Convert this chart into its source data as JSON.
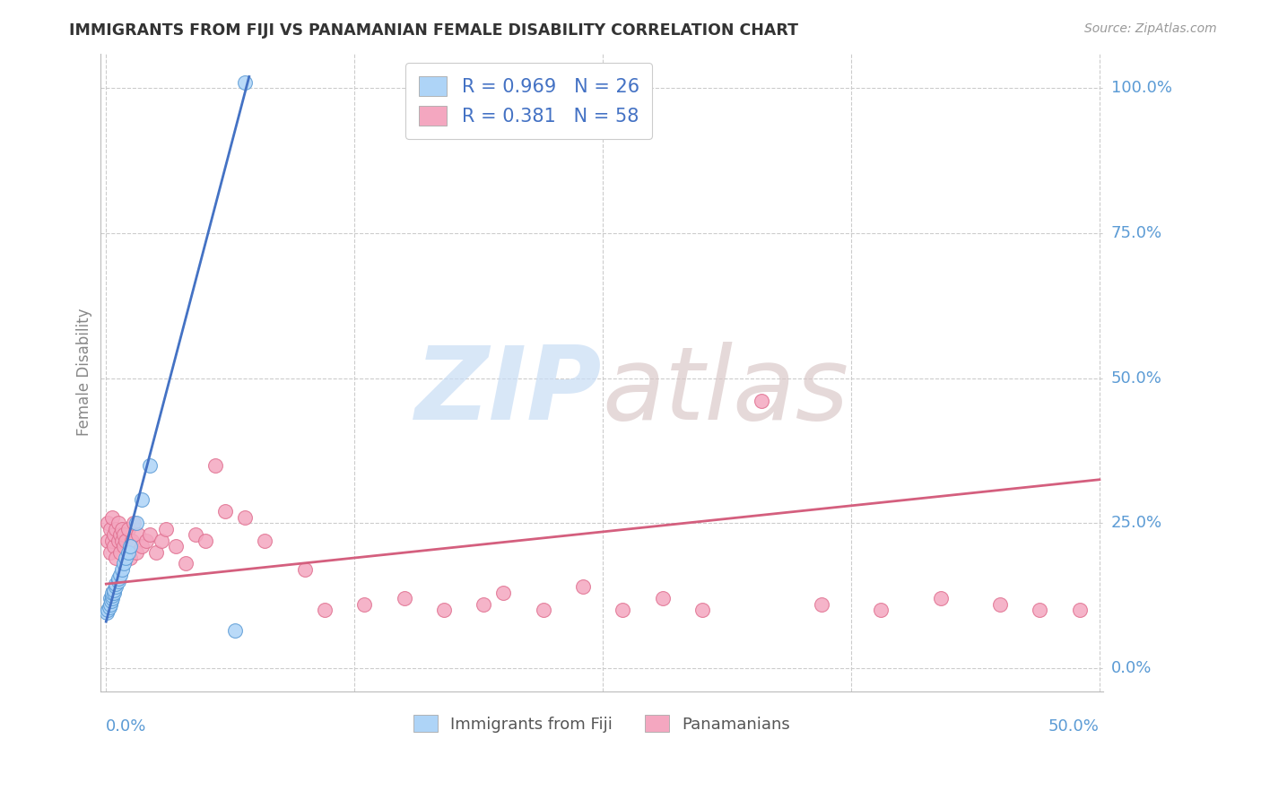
{
  "title": "IMMIGRANTS FROM FIJI VS PANAMANIAN FEMALE DISABILITY CORRELATION CHART",
  "source": "Source: ZipAtlas.com",
  "ylabel": "Female Disability",
  "ylabel_right_labels": [
    "100.0%",
    "75.0%",
    "50.0%",
    "25.0%",
    "0.0%"
  ],
  "ylabel_right_values": [
    1.0,
    0.75,
    0.5,
    0.25,
    0.0
  ],
  "xlim_min": 0.0,
  "xlim_max": 0.5,
  "ylim_min": -0.04,
  "ylim_max": 1.06,
  "fiji_R": 0.969,
  "fiji_N": 26,
  "panama_R": 0.381,
  "panama_N": 58,
  "fiji_color": "#aed4f7",
  "fiji_edge_color": "#5b9bd5",
  "fiji_line_color": "#4472c4",
  "panama_color": "#f4a7c0",
  "panama_edge_color": "#e07090",
  "panama_line_color": "#d45f7e",
  "background_color": "#ffffff",
  "grid_color": "#cccccc",
  "axis_label_color": "#5b9bd5",
  "ylabel_color": "#888888",
  "title_color": "#333333",
  "source_color": "#999999",
  "legend_text_color": "#4472c4",
  "fiji_line_x0": 0.0,
  "fiji_line_y0": 0.08,
  "fiji_line_x1": 0.072,
  "fiji_line_y1": 1.02,
  "panama_line_x0": 0.0,
  "panama_line_y0": 0.145,
  "panama_line_x1": 0.5,
  "panama_line_y1": 0.325,
  "fiji_x": [
    0.0005,
    0.001,
    0.0015,
    0.002,
    0.002,
    0.0025,
    0.003,
    0.003,
    0.003,
    0.004,
    0.004,
    0.005,
    0.005,
    0.006,
    0.006,
    0.007,
    0.008,
    0.009,
    0.01,
    0.011,
    0.012,
    0.015,
    0.018,
    0.022,
    0.065,
    0.07
  ],
  "fiji_y": [
    0.095,
    0.1,
    0.105,
    0.11,
    0.12,
    0.115,
    0.12,
    0.125,
    0.13,
    0.13,
    0.135,
    0.14,
    0.145,
    0.15,
    0.155,
    0.16,
    0.17,
    0.18,
    0.19,
    0.2,
    0.21,
    0.25,
    0.29,
    0.35,
    0.065,
    1.01
  ],
  "panama_x": [
    0.001,
    0.001,
    0.002,
    0.002,
    0.003,
    0.003,
    0.004,
    0.004,
    0.005,
    0.005,
    0.006,
    0.006,
    0.007,
    0.007,
    0.008,
    0.008,
    0.009,
    0.009,
    0.01,
    0.011,
    0.012,
    0.013,
    0.014,
    0.015,
    0.016,
    0.018,
    0.02,
    0.022,
    0.025,
    0.028,
    0.03,
    0.035,
    0.04,
    0.045,
    0.05,
    0.055,
    0.06,
    0.07,
    0.08,
    0.1,
    0.11,
    0.13,
    0.15,
    0.17,
    0.19,
    0.2,
    0.22,
    0.24,
    0.26,
    0.28,
    0.3,
    0.33,
    0.36,
    0.39,
    0.42,
    0.45,
    0.47,
    0.49
  ],
  "panama_y": [
    0.22,
    0.25,
    0.2,
    0.24,
    0.22,
    0.26,
    0.21,
    0.23,
    0.24,
    0.19,
    0.22,
    0.25,
    0.2,
    0.23,
    0.22,
    0.24,
    0.21,
    0.23,
    0.22,
    0.24,
    0.19,
    0.22,
    0.25,
    0.2,
    0.23,
    0.21,
    0.22,
    0.23,
    0.2,
    0.22,
    0.24,
    0.21,
    0.18,
    0.23,
    0.22,
    0.35,
    0.27,
    0.26,
    0.22,
    0.17,
    0.1,
    0.11,
    0.12,
    0.1,
    0.11,
    0.13,
    0.1,
    0.14,
    0.1,
    0.12,
    0.1,
    0.46,
    0.11,
    0.1,
    0.12,
    0.11,
    0.1,
    0.1
  ]
}
